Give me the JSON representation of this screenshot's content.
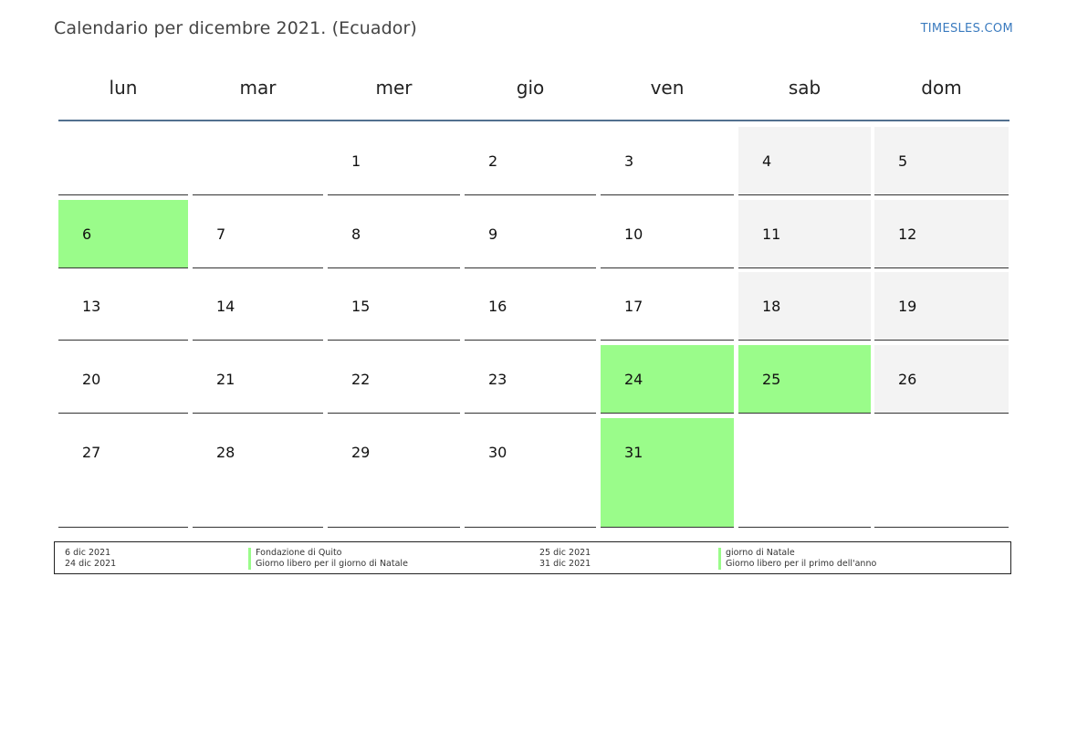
{
  "title": "Calendario per dicembre 2021. (Ecuador)",
  "brand": "TIMESLES.COM",
  "weekdays": [
    "lun",
    "mar",
    "mer",
    "gio",
    "ven",
    "sab",
    "dom"
  ],
  "colors": {
    "holiday": "#9afc8a",
    "weekend": "#f3f3f3",
    "header_rule": "#52708f",
    "brand": "#3b7bbf"
  },
  "weeks": [
    [
      {
        "day": ""
      },
      {
        "day": ""
      },
      {
        "day": "1"
      },
      {
        "day": "2"
      },
      {
        "day": "3"
      },
      {
        "day": "4",
        "weekend": true
      },
      {
        "day": "5",
        "weekend": true
      }
    ],
    [
      {
        "day": "6",
        "holiday": true
      },
      {
        "day": "7"
      },
      {
        "day": "8"
      },
      {
        "day": "9"
      },
      {
        "day": "10"
      },
      {
        "day": "11",
        "weekend": true
      },
      {
        "day": "12",
        "weekend": true
      }
    ],
    [
      {
        "day": "13"
      },
      {
        "day": "14"
      },
      {
        "day": "15"
      },
      {
        "day": "16"
      },
      {
        "day": "17"
      },
      {
        "day": "18",
        "weekend": true
      },
      {
        "day": "19",
        "weekend": true
      }
    ],
    [
      {
        "day": "20"
      },
      {
        "day": "21"
      },
      {
        "day": "22"
      },
      {
        "day": "23"
      },
      {
        "day": "24",
        "holiday": true
      },
      {
        "day": "25",
        "holiday": true
      },
      {
        "day": "26",
        "weekend": true
      }
    ],
    [
      {
        "day": "27"
      },
      {
        "day": "28"
      },
      {
        "day": "29"
      },
      {
        "day": "30"
      },
      {
        "day": "31",
        "holiday": true
      },
      {
        "day": ""
      },
      {
        "day": ""
      }
    ]
  ],
  "legend": {
    "left_dates": [
      "6 dic 2021",
      "24 dic 2021"
    ],
    "left_names": [
      "Fondazione di Quito",
      "Giorno libero per il giorno di Natale"
    ],
    "right_dates": [
      "25 dic 2021",
      "31 dic 2021"
    ],
    "right_names": [
      "giorno di Natale",
      "Giorno libero per il primo dell'anno"
    ]
  }
}
